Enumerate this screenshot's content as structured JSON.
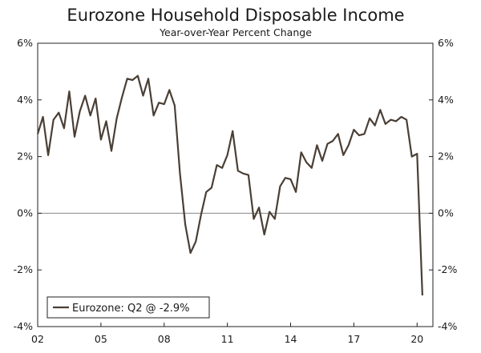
{
  "chart_data": {
    "type": "line",
    "title": "Eurozone Household Disposable Income",
    "subtitle": "Year-over-Year Percent Change",
    "xlabel": "",
    "ylabel": "",
    "ylim": [
      -4,
      6
    ],
    "y_ticks": [
      6,
      4,
      2,
      0,
      -2,
      -4
    ],
    "y_tick_labels": [
      "6%",
      "4%",
      "2%",
      "0%",
      "-2%",
      "-4%"
    ],
    "x_ticks": [
      2002,
      2005,
      2008,
      2011,
      2014,
      2017,
      2020
    ],
    "x_tick_labels": [
      "02",
      "05",
      "08",
      "11",
      "14",
      "17",
      "20"
    ],
    "xlim": [
      2002,
      2020.75
    ],
    "zero_line": true,
    "grid": false,
    "legend_position": "bottom-left",
    "series": [
      {
        "name": "Eurozone: Q2 @ -2.9%",
        "color": "#4a3f35",
        "x": [
          2002.0,
          2002.25,
          2002.5,
          2002.75,
          2003.0,
          2003.25,
          2003.5,
          2003.75,
          2004.0,
          2004.25,
          2004.5,
          2004.75,
          2005.0,
          2005.25,
          2005.5,
          2005.75,
          2006.0,
          2006.25,
          2006.5,
          2006.75,
          2007.0,
          2007.25,
          2007.5,
          2007.75,
          2008.0,
          2008.25,
          2008.5,
          2008.75,
          2009.0,
          2009.25,
          2009.5,
          2009.75,
          2010.0,
          2010.25,
          2010.5,
          2010.75,
          2011.0,
          2011.25,
          2011.5,
          2011.75,
          2012.0,
          2012.25,
          2012.5,
          2012.75,
          2013.0,
          2013.25,
          2013.5,
          2013.75,
          2014.0,
          2014.25,
          2014.5,
          2014.75,
          2015.0,
          2015.25,
          2015.5,
          2015.75,
          2016.0,
          2016.25,
          2016.5,
          2016.75,
          2017.0,
          2017.25,
          2017.5,
          2017.75,
          2018.0,
          2018.25,
          2018.5,
          2018.75,
          2019.0,
          2019.25,
          2019.5,
          2019.75,
          2020.0,
          2020.25
        ],
        "values": [
          2.8,
          3.4,
          2.05,
          3.3,
          3.55,
          3.0,
          4.3,
          2.7,
          3.6,
          4.15,
          3.45,
          4.05,
          2.6,
          3.25,
          2.2,
          3.35,
          4.1,
          4.75,
          4.7,
          4.85,
          4.15,
          4.75,
          3.45,
          3.9,
          3.85,
          4.35,
          3.8,
          1.4,
          -0.4,
          -1.4,
          -1.0,
          -0.05,
          0.75,
          0.9,
          1.7,
          1.6,
          2.05,
          2.9,
          1.5,
          1.4,
          1.35,
          -0.2,
          0.2,
          -0.75,
          0.05,
          -0.2,
          0.95,
          1.25,
          1.2,
          0.75,
          2.15,
          1.8,
          1.6,
          2.4,
          1.85,
          2.45,
          2.55,
          2.8,
          2.05,
          2.4,
          2.95,
          2.75,
          2.8,
          3.35,
          3.1,
          3.65,
          3.15,
          3.3,
          3.25,
          3.4,
          3.3,
          2.0,
          2.1,
          -2.9
        ]
      }
    ]
  }
}
